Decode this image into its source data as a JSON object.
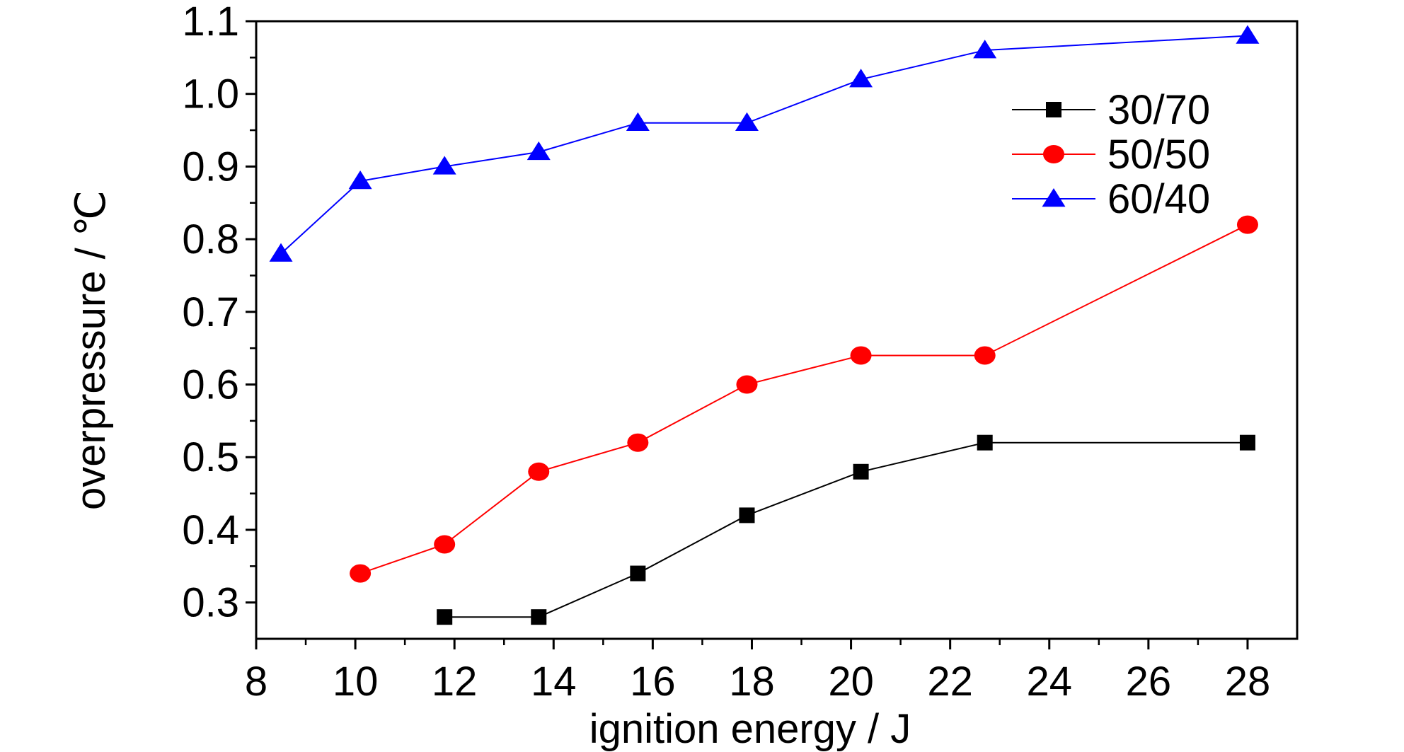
{
  "chart_data": {
    "type": "line",
    "title": "",
    "xlabel": "ignition energy / J",
    "ylabel": "overpressure / ℃",
    "xlim": [
      8,
      29
    ],
    "ylim": [
      0.25,
      1.1
    ],
    "xticks": [
      8,
      10,
      12,
      14,
      16,
      18,
      20,
      22,
      24,
      26,
      28
    ],
    "xtick_labels": [
      "8",
      "10",
      "12",
      "14",
      "16",
      "18",
      "20",
      "22",
      "24",
      "26",
      "28"
    ],
    "yticks": [
      0.3,
      0.4,
      0.5,
      0.6,
      0.7,
      0.8,
      0.9,
      1.0,
      1.1
    ],
    "ytick_labels": [
      "0.3",
      "0.4",
      "0.5",
      "0.6",
      "0.7",
      "0.8",
      "0.9",
      "1.0",
      "1.1"
    ],
    "grid": false,
    "legend_position": "top-right",
    "series": [
      {
        "name": "30/70",
        "color": "#000000",
        "marker": "square",
        "x": [
          11.8,
          13.7,
          15.7,
          17.9,
          20.2,
          22.7,
          28.0
        ],
        "y": [
          0.28,
          0.28,
          0.34,
          0.42,
          0.48,
          0.52,
          0.52
        ]
      },
      {
        "name": "50/50",
        "color": "#ff0000",
        "marker": "circle",
        "x": [
          10.1,
          11.8,
          13.7,
          15.7,
          17.9,
          20.2,
          22.7,
          28.0
        ],
        "y": [
          0.34,
          0.38,
          0.48,
          0.52,
          0.6,
          0.64,
          0.64,
          0.82
        ]
      },
      {
        "name": "60/40",
        "color": "#0000ff",
        "marker": "triangle",
        "x": [
          8.5,
          10.1,
          11.8,
          13.7,
          15.7,
          17.9,
          20.2,
          22.7,
          28.0
        ],
        "y": [
          0.78,
          0.88,
          0.9,
          0.92,
          0.96,
          0.96,
          1.02,
          1.06,
          1.08
        ]
      }
    ]
  }
}
